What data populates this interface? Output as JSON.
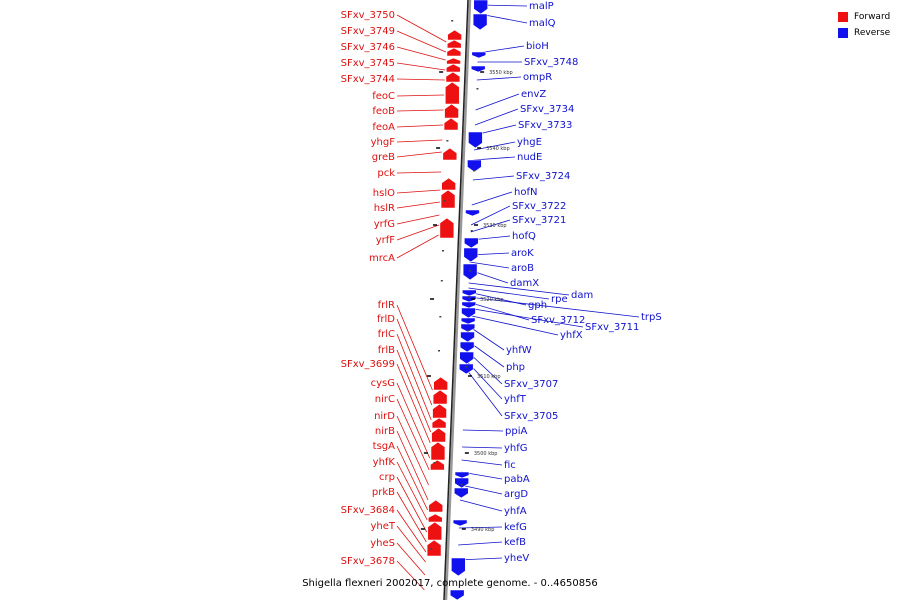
{
  "title": "Shigella flexneri 2002017, complete genome. - 0..4650856",
  "legend": [
    {
      "label": "Forward",
      "color": "#ee1111"
    },
    {
      "label": "Reverse",
      "color": "#1111ee"
    }
  ],
  "ticks": [
    "3550 kbp",
    "3540 kbp",
    "3530 kbp",
    "3520 kbp",
    "3510 kbp",
    "3500 kbp",
    "3490 kbp"
  ],
  "forward_genes": [
    "SFxv_3750",
    "SFxv_3749",
    "SFxv_3746",
    "SFxv_3745",
    "SFxv_3744",
    "feoC",
    "feoB",
    "feoA",
    "yhgF",
    "greB",
    "pck",
    "hslO",
    "hslR",
    "yrfG",
    "yrfF",
    "mrcA",
    "frlR",
    "frlD",
    "frlC",
    "frlB",
    "SFxv_3699",
    "cysG",
    "nirC",
    "nirD",
    "nirB",
    "tsgA",
    "yhfK",
    "crp",
    "prkB",
    "SFxv_3684",
    "yheT",
    "yheS",
    "SFxv_3678"
  ],
  "reverse_genes": [
    "malP",
    "malQ",
    "bioH",
    "SFxv_3748",
    "ompR",
    "envZ",
    "SFxv_3734",
    "SFxv_3733",
    "yhgE",
    "nudE",
    "SFxv_3724",
    "hofN",
    "SFxv_3722",
    "SFxv_3721",
    "hofQ",
    "aroK",
    "aroB",
    "damX",
    "dam",
    "rpe",
    "gph",
    "trpS",
    "SFxv_3712",
    "SFxv_3711",
    "yhfX",
    "yhfW",
    "php",
    "SFxv_3707",
    "yhfT",
    "SFxv_3705",
    "ppiA",
    "yhfG",
    "fic",
    "pabA",
    "argD",
    "yhfA",
    "kefG",
    "kefB",
    "yheV"
  ]
}
